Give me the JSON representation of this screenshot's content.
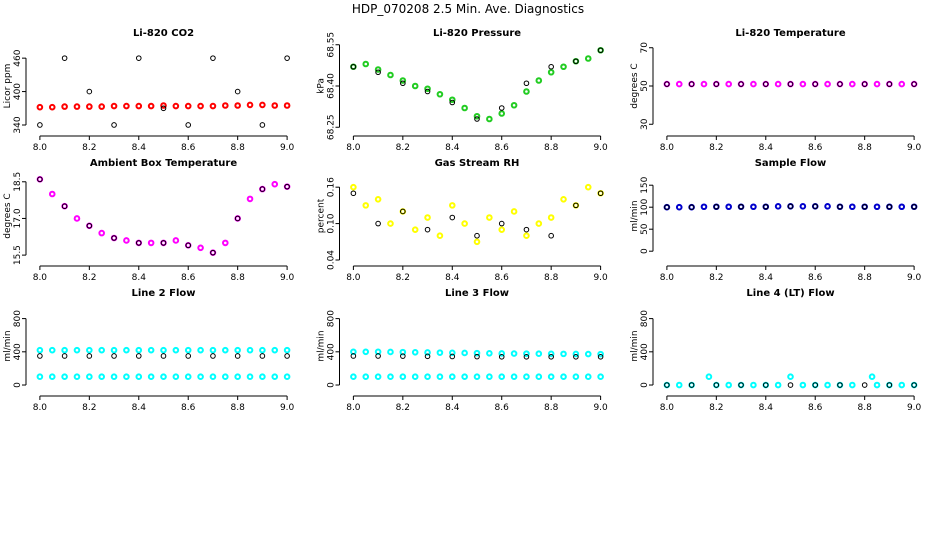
{
  "title": "HDP_070208  2.5 Min. Ave. Diagnostics",
  "chart_data": [
    {
      "type": "scatter",
      "title": "Li-820 CO2",
      "ylabel": "Licor ppm",
      "xlim": [
        7.96,
        9.04
      ],
      "ylim": [
        331,
        489
      ],
      "xticks": [
        {
          "value": 8,
          "label": "8.0"
        },
        8.2,
        8.4,
        8.6,
        8.8,
        {
          "value": 9,
          "label": "9.0"
        }
      ],
      "yticks": [
        340,
        400,
        460
      ],
      "series": [
        {
          "color": "#ff0000",
          "x": [
            8,
            8.05,
            8.1,
            8.15,
            8.2,
            8.25,
            8.3,
            8.35,
            8.4,
            8.45,
            8.5,
            8.55,
            8.6,
            8.65,
            8.7,
            8.75,
            8.8,
            8.85,
            8.9,
            8.95,
            9
          ],
          "values": [
            372,
            372,
            373,
            373,
            373,
            373,
            374,
            374,
            374,
            374,
            375,
            374,
            374,
            374,
            374,
            375,
            375,
            376,
            376,
            375,
            375
          ]
        },
        {
          "color": "#000000",
          "x": [
            8,
            8.1,
            8.2,
            8.3,
            8.4,
            8.5,
            8.6,
            8.7,
            8.8,
            8.9,
            9
          ],
          "values": [
            340,
            460,
            400,
            340,
            460,
            370,
            340,
            460,
            400,
            340,
            460
          ]
        }
      ]
    },
    {
      "type": "scatter",
      "title": "Li-820 Pressure",
      "ylabel": "kPa",
      "xlim": [
        7.96,
        9.04
      ],
      "ylim": [
        68.24,
        68.56
      ],
      "xticks": [
        {
          "value": 8,
          "label": "8.0"
        },
        8.2,
        8.4,
        8.6,
        8.8,
        {
          "value": 9,
          "label": "9.0"
        }
      ],
      "yticks": [
        68.25,
        {
          "value": 68.4,
          "label": "68.40"
        },
        68.55
      ],
      "series": [
        {
          "color": "#22cc22",
          "x": [
            8,
            8.05,
            8.1,
            8.15,
            8.2,
            8.25,
            8.3,
            8.35,
            8.4,
            8.45,
            8.5,
            8.55,
            8.6,
            8.65,
            8.7,
            8.75,
            8.8,
            8.85,
            8.9,
            8.95,
            9
          ],
          "values": [
            68.47,
            68.48,
            68.46,
            68.44,
            68.42,
            68.4,
            68.39,
            68.37,
            68.35,
            68.32,
            68.29,
            68.28,
            68.3,
            68.33,
            68.38,
            68.42,
            68.45,
            68.47,
            68.49,
            68.5,
            68.53
          ]
        },
        {
          "color": "#000000",
          "x": [
            8,
            8.1,
            8.2,
            8.3,
            8.4,
            8.5,
            8.6,
            8.7,
            8.8,
            8.9,
            9
          ],
          "values": [
            68.47,
            68.45,
            68.41,
            68.38,
            68.34,
            68.28,
            68.32,
            68.41,
            68.47,
            68.49,
            68.53
          ]
        }
      ]
    },
    {
      "type": "scatter",
      "title": "Li-820 Temperature",
      "ylabel": "degrees C",
      "xlim": [
        7.96,
        9.04
      ],
      "ylim": [
        27,
        73
      ],
      "xticks": [
        {
          "value": 8,
          "label": "8.0"
        },
        8.2,
        8.4,
        8.6,
        8.8,
        {
          "value": 9,
          "label": "9.0"
        }
      ],
      "yticks": [
        30,
        50,
        70
      ],
      "series": [
        {
          "color": "#ff00ff",
          "x": [
            8,
            8.05,
            8.1,
            8.15,
            8.2,
            8.25,
            8.3,
            8.35,
            8.4,
            8.45,
            8.5,
            8.55,
            8.6,
            8.65,
            8.7,
            8.75,
            8.8,
            8.85,
            8.9,
            8.95,
            9
          ],
          "values": [
            51,
            51,
            51,
            51,
            51,
            51,
            51,
            51,
            51,
            51,
            51,
            51,
            51,
            51,
            51,
            51,
            51,
            51,
            51,
            51,
            51
          ]
        },
        {
          "color": "#000000",
          "x": [
            8,
            8.1,
            8.2,
            8.3,
            8.4,
            8.5,
            8.6,
            8.7,
            8.8,
            8.9,
            9
          ],
          "values": [
            51,
            51,
            51,
            51,
            51,
            51,
            51,
            51,
            51,
            51,
            51
          ]
        }
      ]
    },
    {
      "type": "scatter",
      "title": "Ambient Box Temperature",
      "ylabel": "degrees C",
      "xlim": [
        7.96,
        9.04
      ],
      "ylim": [
        15.3,
        18.9
      ],
      "xticks": [
        {
          "value": 8,
          "label": "8.0"
        },
        8.2,
        8.4,
        8.6,
        8.8,
        {
          "value": 9,
          "label": "9.0"
        }
      ],
      "yticks": [
        15.5,
        {
          "value": 17,
          "label": "17.0"
        },
        18.5
      ],
      "series": [
        {
          "color": "#ff00ff",
          "x": [
            8,
            8.05,
            8.1,
            8.15,
            8.2,
            8.25,
            8.3,
            8.35,
            8.4,
            8.45,
            8.5,
            8.55,
            8.6,
            8.65,
            8.7,
            8.75,
            8.8,
            8.85,
            8.9,
            8.95,
            9
          ],
          "values": [
            18.6,
            18,
            17.5,
            17,
            16.7,
            16.4,
            16.2,
            16.1,
            16,
            16,
            16,
            16.1,
            15.9,
            15.8,
            15.6,
            16,
            17,
            17.8,
            18.2,
            18.4,
            18.3
          ]
        },
        {
          "color": "#000000",
          "x": [
            8,
            8.1,
            8.2,
            8.3,
            8.4,
            8.5,
            8.6,
            8.7,
            8.8,
            8.9,
            9
          ],
          "values": [
            18.6,
            17.5,
            16.7,
            16.2,
            16,
            16,
            15.9,
            15.6,
            17,
            18.2,
            18.3
          ]
        }
      ]
    },
    {
      "type": "scatter",
      "title": "Gas Stream RH",
      "ylabel": "percent",
      "xlim": [
        7.96,
        9.04
      ],
      "ylim": [
        0.04,
        0.185
      ],
      "xticks": [
        {
          "value": 8,
          "label": "8.0"
        },
        8.2,
        8.4,
        8.6,
        8.8,
        {
          "value": 9,
          "label": "9.0"
        }
      ],
      "yticks": [
        0.04,
        {
          "value": 0.1,
          "label": "0.10"
        },
        0.16
      ],
      "series": [
        {
          "color": "#ffff00",
          "x": [
            8,
            8.05,
            8.1,
            8.15,
            8.2,
            8.25,
            8.3,
            8.35,
            8.4,
            8.45,
            8.5,
            8.55,
            8.6,
            8.65,
            8.7,
            8.75,
            8.8,
            8.85,
            8.9,
            8.95,
            9
          ],
          "values": [
            0.16,
            0.13,
            0.14,
            0.1,
            0.12,
            0.09,
            0.11,
            0.08,
            0.13,
            0.1,
            0.07,
            0.11,
            0.09,
            0.12,
            0.08,
            0.1,
            0.11,
            0.14,
            0.13,
            0.16,
            0.15
          ]
        },
        {
          "color": "#000000",
          "x": [
            8,
            8.1,
            8.2,
            8.3,
            8.4,
            8.5,
            8.6,
            8.7,
            8.8,
            8.9,
            9
          ],
          "values": [
            0.15,
            0.1,
            0.12,
            0.09,
            0.11,
            0.08,
            0.1,
            0.09,
            0.08,
            0.13,
            0.15
          ]
        }
      ]
    },
    {
      "type": "scatter",
      "title": "Sample Flow",
      "ylabel": "ml/min",
      "xlim": [
        7.96,
        9.04
      ],
      "ylim": [
        -20,
        180
      ],
      "xticks": [
        {
          "value": 8,
          "label": "8.0"
        },
        8.2,
        8.4,
        8.6,
        8.8,
        {
          "value": 9,
          "label": "9.0"
        }
      ],
      "yticks": [
        0,
        50,
        100,
        150
      ],
      "series": [
        {
          "color": "#0000cc",
          "x": [
            8,
            8.05,
            8.1,
            8.15,
            8.2,
            8.25,
            8.3,
            8.35,
            8.4,
            8.45,
            8.5,
            8.55,
            8.6,
            8.65,
            8.7,
            8.75,
            8.8,
            8.85,
            8.9,
            8.95,
            9
          ],
          "values": [
            100,
            100,
            100,
            101,
            101,
            101,
            101,
            101,
            101,
            102,
            102,
            102,
            102,
            102,
            101,
            101,
            101,
            101,
            101,
            101,
            101
          ]
        },
        {
          "color": "#000000",
          "x": [
            8,
            8.1,
            8.2,
            8.3,
            8.4,
            8.5,
            8.6,
            8.7,
            8.8,
            8.9,
            9
          ],
          "values": [
            100,
            100,
            101,
            101,
            101,
            102,
            102,
            101,
            101,
            101,
            101
          ]
        }
      ]
    },
    {
      "type": "scatter",
      "title": "Line 2 Flow",
      "ylabel": "ml/min",
      "xlim": [
        7.96,
        9.04
      ],
      "ylim": [
        -60,
        1000
      ],
      "xticks": [
        {
          "value": 8,
          "label": "8.0"
        },
        8.2,
        8.4,
        8.6,
        8.8,
        {
          "value": 9,
          "label": "9.0"
        }
      ],
      "yticks": [
        0,
        400,
        800
      ],
      "series": [
        {
          "color": "#00ffff",
          "x": [
            8,
            8.05,
            8.1,
            8.15,
            8.2,
            8.25,
            8.3,
            8.35,
            8.4,
            8.45,
            8.5,
            8.55,
            8.6,
            8.65,
            8.7,
            8.75,
            8.8,
            8.85,
            8.9,
            8.95,
            9
          ],
          "values": [
            420,
            420,
            420,
            420,
            420,
            420,
            420,
            420,
            420,
            420,
            420,
            420,
            420,
            420,
            420,
            420,
            420,
            420,
            420,
            420,
            420
          ]
        },
        {
          "color": "#00ffff",
          "x": [
            8,
            8.05,
            8.1,
            8.15,
            8.2,
            8.25,
            8.3,
            8.35,
            8.4,
            8.45,
            8.5,
            8.55,
            8.6,
            8.65,
            8.7,
            8.75,
            8.8,
            8.85,
            8.9,
            8.95,
            9
          ],
          "values": [
            100,
            100,
            100,
            100,
            100,
            100,
            100,
            100,
            100,
            100,
            100,
            100,
            100,
            100,
            100,
            100,
            100,
            100,
            100,
            100,
            100
          ]
        },
        {
          "color": "#000000",
          "x": [
            8,
            8.1,
            8.2,
            8.3,
            8.4,
            8.5,
            8.6,
            8.7,
            8.8,
            8.9,
            9
          ],
          "values": [
            350,
            350,
            350,
            350,
            350,
            350,
            350,
            350,
            350,
            350,
            350
          ]
        }
      ]
    },
    {
      "type": "scatter",
      "title": "Line 3 Flow",
      "ylabel": "ml/min",
      "xlim": [
        7.96,
        9.04
      ],
      "ylim": [
        -60,
        1000
      ],
      "xticks": [
        {
          "value": 8,
          "label": "8.0"
        },
        8.2,
        8.4,
        8.6,
        8.8,
        {
          "value": 9,
          "label": "9.0"
        }
      ],
      "yticks": [
        0,
        400,
        800
      ],
      "series": [
        {
          "color": "#00ffff",
          "x": [
            8,
            8.05,
            8.1,
            8.15,
            8.2,
            8.25,
            8.3,
            8.35,
            8.4,
            8.45,
            8.5,
            8.55,
            8.6,
            8.65,
            8.7,
            8.75,
            8.8,
            8.85,
            8.9,
            8.95,
            9
          ],
          "values": [
            400,
            400,
            400,
            398,
            396,
            394,
            392,
            390,
            388,
            386,
            384,
            382,
            380,
            379,
            378,
            377,
            376,
            375,
            374,
            373,
            372
          ]
        },
        {
          "color": "#00ffff",
          "x": [
            8,
            8.05,
            8.1,
            8.15,
            8.2,
            8.25,
            8.3,
            8.35,
            8.4,
            8.45,
            8.5,
            8.55,
            8.6,
            8.65,
            8.7,
            8.75,
            8.8,
            8.85,
            8.9,
            8.95,
            9
          ],
          "values": [
            100,
            100,
            100,
            100,
            100,
            100,
            100,
            100,
            100,
            100,
            100,
            100,
            100,
            100,
            100,
            100,
            100,
            100,
            100,
            100,
            100
          ]
        },
        {
          "color": "#000000",
          "x": [
            8,
            8.1,
            8.2,
            8.3,
            8.4,
            8.5,
            8.6,
            8.7,
            8.8,
            8.9,
            9
          ],
          "values": [
            350,
            350,
            348,
            346,
            344,
            342,
            340,
            340,
            340,
            340,
            340
          ]
        }
      ]
    },
    {
      "type": "scatter",
      "title": "Line 4 (LT) Flow",
      "ylabel": "ml/min",
      "xlim": [
        7.96,
        9.04
      ],
      "ylim": [
        -60,
        1000
      ],
      "xticks": [
        {
          "value": 8,
          "label": "8.0"
        },
        8.2,
        8.4,
        8.6,
        8.8,
        {
          "value": 9,
          "label": "9.0"
        }
      ],
      "yticks": [
        0,
        400,
        800
      ],
      "series": [
        {
          "color": "#00ffff",
          "x": [
            8,
            8.05,
            8.1,
            8.17,
            8.2,
            8.25,
            8.3,
            8.35,
            8.4,
            8.45,
            8.5,
            8.55,
            8.6,
            8.65,
            8.7,
            8.75,
            8.83,
            8.85,
            8.9,
            8.95,
            9
          ],
          "values": [
            0,
            0,
            0,
            100,
            0,
            0,
            0,
            0,
            0,
            0,
            100,
            0,
            0,
            0,
            0,
            0,
            100,
            0,
            0,
            0,
            0
          ]
        },
        {
          "color": "#000000",
          "x": [
            8,
            8.1,
            8.2,
            8.3,
            8.4,
            8.5,
            8.6,
            8.7,
            8.8,
            8.9,
            9
          ],
          "values": [
            0,
            0,
            0,
            0,
            0,
            0,
            0,
            0,
            0,
            0,
            0
          ]
        }
      ]
    }
  ]
}
